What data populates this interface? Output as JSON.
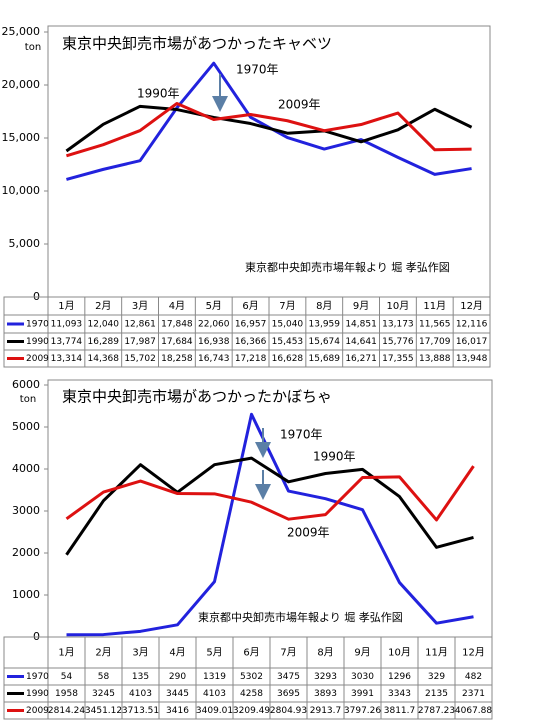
{
  "chart_data": [
    {
      "type": "line",
      "title": "東京中央卸売市場があつかったキャベツ",
      "y_unit": "ton",
      "categories": [
        "1月",
        "2月",
        "3月",
        "4月",
        "5月",
        "6月",
        "7月",
        "8月",
        "9月",
        "10月",
        "11月",
        "12月"
      ],
      "ylim": [
        0,
        25000
      ],
      "yticks": [
        0,
        {
          "value": 5000,
          "label": "5,000"
        },
        {
          "value": 10000,
          "label": "10,000"
        },
        {
          "value": 15000,
          "label": "15,000"
        },
        {
          "value": 20000,
          "label": "20,000"
        },
        {
          "value": 25000,
          "label": "25,000"
        }
      ],
      "annotations": [
        "1970年",
        "1990年",
        "2009年",
        "東京都中央卸売市場年報より 堀 孝弘作図"
      ],
      "series": [
        {
          "name": "1970",
          "color": "#2222dd",
          "values": [
            11093,
            12040,
            12861,
            17848,
            22060,
            16957,
            15040,
            13959,
            14851,
            13173,
            11565,
            12116
          ],
          "value_labels": [
            "11,093",
            "12,040",
            "12,861",
            "17,848",
            "22,060",
            "16,957",
            "15,040",
            "13,959",
            "14,851",
            "13,173",
            "11,565",
            "12,116"
          ]
        },
        {
          "name": "1990",
          "color": "#000000",
          "values": [
            13774,
            16289,
            17987,
            17684,
            16938,
            16366,
            15453,
            15674,
            14641,
            15776,
            17709,
            16017
          ],
          "value_labels": [
            "13,774",
            "16,289",
            "17,987",
            "17,684",
            "16,938",
            "16,366",
            "15,453",
            "15,674",
            "14,641",
            "15,776",
            "17,709",
            "16,017"
          ]
        },
        {
          "name": "2009",
          "color": "#dd1111",
          "values": [
            13314,
            14368,
            15702,
            18258,
            16743,
            17218,
            16628,
            15689,
            16271,
            17355,
            13888,
            13948
          ],
          "value_labels": [
            "13,314",
            "14,368",
            "15,702",
            "18,258",
            "16,743",
            "17,218",
            "16,628",
            "15,689",
            "16,271",
            "17,355",
            "13,888",
            "13,948"
          ]
        }
      ]
    },
    {
      "type": "line",
      "title": "東京中央卸売市場があつかったかぼちゃ",
      "y_unit": "ton",
      "categories": [
        "1月",
        "2月",
        "3月",
        "4月",
        "5月",
        "6月",
        "7月",
        "8月",
        "9月",
        "10月",
        "11月",
        "12月"
      ],
      "ylim": [
        0,
        6000
      ],
      "yticks": [
        0,
        1000,
        2000,
        3000,
        4000,
        5000,
        6000
      ],
      "annotations": [
        "1970年",
        "1990年",
        "2009年",
        "東京都中央卸売市場年報より 堀 孝弘作図"
      ],
      "series": [
        {
          "name": "1970",
          "color": "#2222dd",
          "values": [
            54,
            58,
            135,
            290,
            1319,
            5302,
            3475,
            3293,
            3030,
            1296,
            329,
            482
          ]
        },
        {
          "name": "1990",
          "color": "#000000",
          "values": [
            1958,
            3245,
            4103,
            3445,
            4103,
            4258,
            3695,
            3893,
            3991,
            3343,
            2135,
            2371
          ]
        },
        {
          "name": "2009",
          "color": "#dd1111",
          "values": [
            2814.24,
            3451.12,
            3713.51,
            3416,
            3409.01,
            3209.49,
            2804.93,
            2913.7,
            3797.26,
            3811.7,
            2787.23,
            4067.88
          ]
        }
      ]
    }
  ]
}
